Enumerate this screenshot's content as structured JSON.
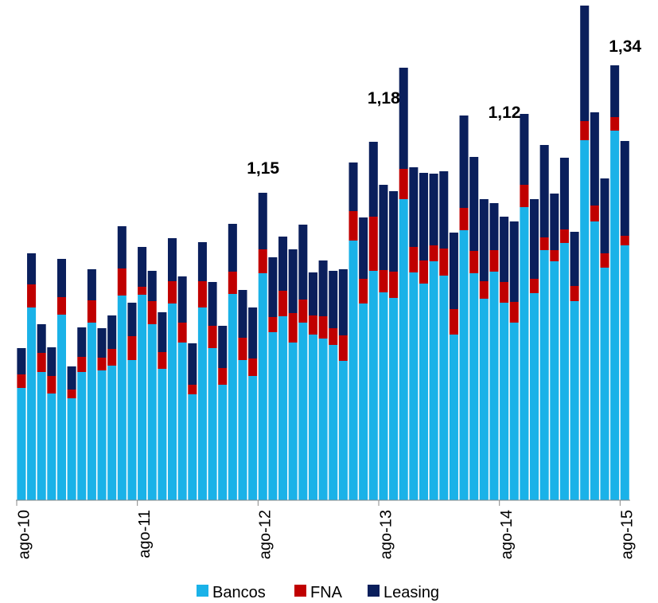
{
  "chart_data": {
    "type": "stacked_bar",
    "categories": [
      "ago-10",
      null,
      null,
      null,
      null,
      null,
      null,
      null,
      null,
      null,
      null,
      null,
      "ago-11",
      null,
      null,
      null,
      null,
      null,
      null,
      null,
      null,
      null,
      null,
      null,
      "ago-12",
      null,
      null,
      null,
      null,
      null,
      null,
      null,
      null,
      null,
      null,
      null,
      "ago-13",
      null,
      null,
      null,
      null,
      null,
      null,
      null,
      null,
      null,
      null,
      null,
      "ago-14",
      null,
      null,
      null,
      null,
      null,
      null,
      null,
      null,
      null,
      null,
      null,
      "ago-15"
    ],
    "series": [
      {
        "name": "Bancos",
        "color": "#1ab2e8",
        "values": [
          141,
          242,
          161,
          134,
          233,
          128,
          161,
          223,
          163,
          169,
          257,
          176,
          258,
          221,
          165,
          247,
          198,
          133,
          242,
          191,
          145,
          259,
          176,
          156,
          285,
          211,
          231,
          198,
          223,
          208,
          203,
          195,
          175,
          326,
          247,
          288,
          261,
          254,
          378,
          286,
          272,
          300,
          282,
          208,
          339,
          285,
          253,
          287,
          248,
          223,
          368,
          260,
          314,
          300,
          323,
          250,
          452,
          350,
          292,
          464,
          320
        ]
      },
      {
        "name": "FNA",
        "color": "#c00000",
        "values": [
          17,
          29,
          24,
          22,
          22,
          11,
          19,
          28,
          16,
          21,
          34,
          30,
          10,
          29,
          21,
          28,
          25,
          12,
          33,
          28,
          21,
          28,
          28,
          22,
          30,
          19,
          32,
          37,
          29,
          24,
          28,
          21,
          32,
          37,
          31,
          68,
          28,
          33,
          38,
          32,
          29,
          20,
          34,
          32,
          28,
          28,
          22,
          27,
          26,
          26,
          28,
          18,
          16,
          14,
          17,
          19,
          24,
          20,
          18,
          17,
          12
        ]
      },
      {
        "name": "Leasing",
        "color": "#0a1f5c",
        "values": [
          33,
          39,
          36,
          36,
          48,
          29,
          37,
          39,
          37,
          42,
          53,
          42,
          50,
          38,
          50,
          54,
          58,
          52,
          49,
          55,
          53,
          60,
          60,
          64,
          71,
          75,
          68,
          80,
          94,
          54,
          70,
          72,
          83,
          61,
          77,
          94,
          107,
          101,
          127,
          100,
          110,
          90,
          97,
          96,
          116,
          118,
          103,
          59,
          82,
          101,
          89,
          100,
          116,
          71,
          90,
          68,
          145,
          117,
          94,
          65,
          119
        ]
      }
    ],
    "annotations": [
      {
        "text": "1,15",
        "x": "ago-12"
      },
      {
        "text": "1,18",
        "x": "ago-13"
      },
      {
        "text": "1,12",
        "x": "ago-14"
      },
      {
        "text": "1,34",
        "x": "ago-15"
      }
    ],
    "ylim": [
      0,
      621
    ]
  }
}
